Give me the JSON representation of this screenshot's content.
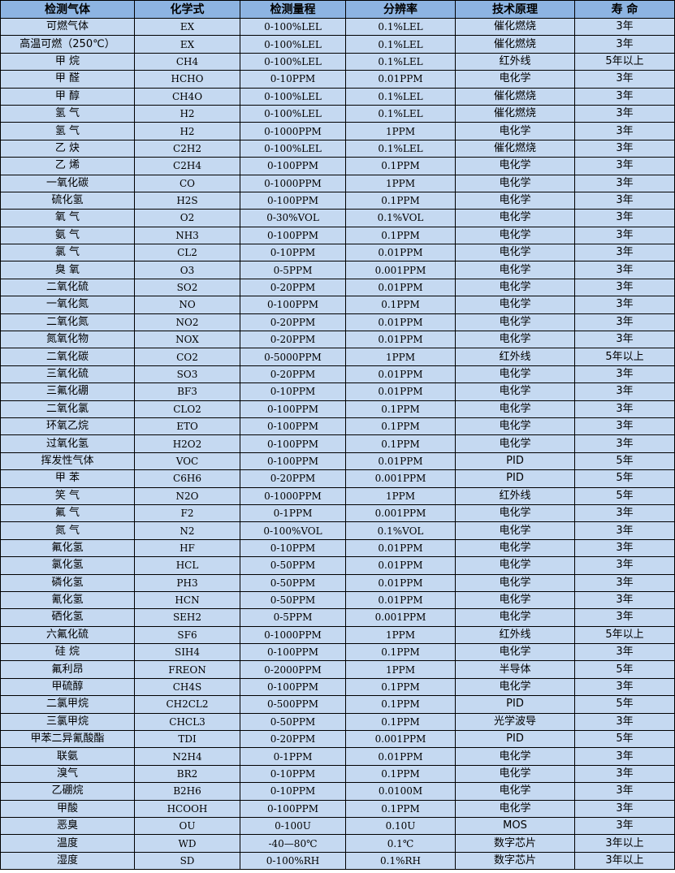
{
  "table": {
    "headers": [
      "检测气体",
      "化学式",
      "检测量程",
      "分辨率",
      "技术原理",
      "寿 命"
    ],
    "rows": [
      [
        "可燃气体",
        "EX",
        "0-100%LEL",
        "0.1%LEL",
        "催化燃烧",
        "3年"
      ],
      [
        "高温可燃（250℃）",
        "EX",
        "0-100%LEL",
        "0.1%LEL",
        "催化燃烧",
        "3年"
      ],
      [
        "甲 烷",
        "CH4",
        "0-100%LEL",
        "0.1%LEL",
        "红外线",
        "5年以上"
      ],
      [
        "甲 醛",
        "HCHO",
        "0-10PPM",
        "0.01PPM",
        "电化学",
        "3年"
      ],
      [
        "甲 醇",
        "CH4O",
        "0-100%LEL",
        "0.1%LEL",
        "催化燃烧",
        "3年"
      ],
      [
        "氢 气",
        "H2",
        "0-100%LEL",
        "0.1%LEL",
        "催化燃烧",
        "3年"
      ],
      [
        "氢 气",
        "H2",
        "0-1000PPM",
        "1PPM",
        "电化学",
        "3年"
      ],
      [
        "乙 炔",
        "C2H2",
        "0-100%LEL",
        "0.1%LEL",
        "催化燃烧",
        "3年"
      ],
      [
        "乙 烯",
        "C2H4",
        "0-100PPM",
        "0.1PPM",
        "电化学",
        "3年"
      ],
      [
        "一氧化碳",
        "CO",
        "0-1000PPM",
        "1PPM",
        "电化学",
        "3年"
      ],
      [
        "硫化氢",
        "H2S",
        "0-100PPM",
        "0.1PPM",
        "电化学",
        "3年"
      ],
      [
        "氧 气",
        "O2",
        "0-30%VOL",
        "0.1%VOL",
        "电化学",
        "3年"
      ],
      [
        "氨 气",
        "NH3",
        "0-100PPM",
        "0.1PPM",
        "电化学",
        "3年"
      ],
      [
        "氯 气",
        "CL2",
        "0-10PPM",
        "0.01PPM",
        "电化学",
        "3年"
      ],
      [
        "臭 氧",
        "O3",
        "0-5PPM",
        "0.001PPM",
        "电化学",
        "3年"
      ],
      [
        "二氧化硫",
        "SO2",
        "0-20PPM",
        "0.01PPM",
        "电化学",
        "3年"
      ],
      [
        "一氧化氮",
        "NO",
        "0-100PPM",
        "0.1PPM",
        "电化学",
        "3年"
      ],
      [
        "二氧化氮",
        "NO2",
        "0-20PPM",
        "0.01PPM",
        "电化学",
        "3年"
      ],
      [
        "氮氧化物",
        "NOX",
        "0-20PPM",
        "0.01PPM",
        "电化学",
        "3年"
      ],
      [
        "二氧化碳",
        "CO2",
        "0-5000PPM",
        "1PPM",
        "红外线",
        "5年以上"
      ],
      [
        "三氧化硫",
        "SO3",
        "0-20PPM",
        "0.01PPM",
        "电化学",
        "3年"
      ],
      [
        "三氟化硼",
        "BF3",
        "0-10PPM",
        "0.01PPM",
        "电化学",
        "3年"
      ],
      [
        "二氧化氯",
        "CLO2",
        "0-100PPM",
        "0.1PPM",
        "电化学",
        "3年"
      ],
      [
        "环氧乙烷",
        "ETO",
        "0-100PPM",
        "0.1PPM",
        "电化学",
        "3年"
      ],
      [
        "过氧化氢",
        "H2O2",
        "0-100PPM",
        "0.1PPM",
        "电化学",
        "3年"
      ],
      [
        "挥发性气体",
        "VOC",
        "0-100PPM",
        "0.01PPM",
        "PID",
        "5年"
      ],
      [
        "甲 苯",
        "C6H6",
        "0-20PPM",
        "0.001PPM",
        "PID",
        "5年"
      ],
      [
        "笑 气",
        "N2O",
        "0-1000PPM",
        "1PPM",
        "红外线",
        "5年"
      ],
      [
        "氟 气",
        "F2",
        "0-1PPM",
        "0.001PPM",
        "电化学",
        "3年"
      ],
      [
        "氮 气",
        "N2",
        "0-100%VOL",
        "0.1%VOL",
        "电化学",
        "3年"
      ],
      [
        "氟化氢",
        "HF",
        "0-10PPM",
        "0.01PPM",
        "电化学",
        "3年"
      ],
      [
        "氯化氢",
        "HCL",
        "0-50PPM",
        "0.01PPM",
        "电化学",
        "3年"
      ],
      [
        "磷化氢",
        "PH3",
        "0-50PPM",
        "0.01PPM",
        "电化学",
        "3年"
      ],
      [
        "氰化氢",
        "HCN",
        "0-50PPM",
        "0.01PPM",
        "电化学",
        "3年"
      ],
      [
        "硒化氢",
        "SEH2",
        "0-5PPM",
        "0.001PPM",
        "电化学",
        "3年"
      ],
      [
        "六氟化硫",
        "SF6",
        "0-1000PPM",
        "1PPM",
        "红外线",
        "5年以上"
      ],
      [
        "硅 烷",
        "SIH4",
        "0-100PPM",
        "0.1PPM",
        "电化学",
        "3年"
      ],
      [
        "氟利昂",
        "FREON",
        "0-2000PPM",
        "1PPM",
        "半导体",
        "5年"
      ],
      [
        "甲硫醇",
        "CH4S",
        "0-100PPM",
        "0.1PPM",
        "电化学",
        "3年"
      ],
      [
        "二氯甲烷",
        "CH2CL2",
        "0-500PPM",
        "0.1PPM",
        "PID",
        "5年"
      ],
      [
        "三氯甲烷",
        "CHCL3",
        "0-50PPM",
        "0.1PPM",
        "光学波导",
        "3年"
      ],
      [
        "甲苯二异氰酸酯",
        "TDI",
        "0-20PPM",
        "0.001PPM",
        "PID",
        "5年"
      ],
      [
        "联氨",
        "N2H4",
        "0-1PPM",
        "0.01PPM",
        "电化学",
        "3年"
      ],
      [
        "溴气",
        "BR2",
        "0-10PPM",
        "0.1PPM",
        "电化学",
        "3年"
      ],
      [
        "乙硼烷",
        "B2H6",
        "0-10PPM",
        "0.0100M",
        "电化学",
        "3年"
      ],
      [
        "甲酸",
        "HCOOH",
        "0-100PPM",
        "0.1PPM",
        "电化学",
        "3年"
      ],
      [
        "恶臭",
        "OU",
        "0-100U",
        "0.10U",
        "MOS",
        "3年"
      ],
      [
        "温度",
        "WD",
        "-40—80℃",
        "0.1℃",
        "数字芯片",
        "3年以上"
      ],
      [
        "湿度",
        "SD",
        "0-100%RH",
        "0.1%RH",
        "数字芯片",
        "3年以上"
      ]
    ]
  },
  "colors": {
    "header_bg": "#8db4e2",
    "row_bg": "#c5d9f1",
    "border": "#000000"
  }
}
